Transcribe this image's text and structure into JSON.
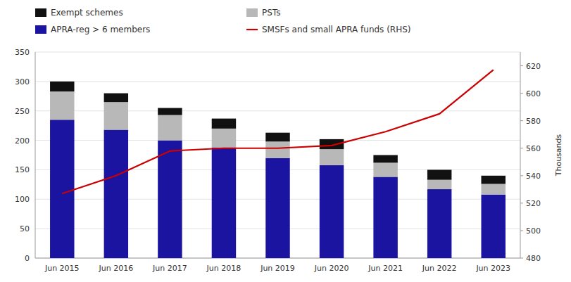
{
  "chart_data": {
    "type": "bar",
    "stacked": true,
    "categories": [
      "Jun 2015",
      "Jun 2016",
      "Jun 2017",
      "Jun 2018",
      "Jun 2019",
      "Jun 2020",
      "Jun 2021",
      "Jun 2022",
      "Jun 2023"
    ],
    "series": [
      {
        "name": "Exempt schemes",
        "color": "#111111",
        "values": [
          17,
          15,
          12,
          17,
          15,
          17,
          13,
          17,
          14
        ]
      },
      {
        "name": "PSTs",
        "color": "#b8b8b8",
        "values": [
          48,
          47,
          43,
          32,
          28,
          27,
          24,
          16,
          18
        ]
      },
      {
        "name": "APRA-reg > 6 members",
        "color": "#1a14a0",
        "values": [
          235,
          218,
          200,
          188,
          170,
          158,
          138,
          117,
          108
        ]
      },
      {
        "name": "SMSFs and small APRA funds (RHS)",
        "type": "line",
        "axis": "y2",
        "color": "#cc0000",
        "values": [
          527,
          540,
          558,
          560,
          560,
          562,
          572,
          585,
          617
        ]
      }
    ],
    "ylim": [
      0,
      350
    ],
    "yticks": [
      0,
      50,
      100,
      150,
      200,
      250,
      300,
      350
    ],
    "y2lim": [
      480,
      630
    ],
    "y2ticks": [
      480,
      500,
      520,
      540,
      560,
      580,
      600,
      620
    ],
    "y2label": "Thousands",
    "grid": true,
    "legend": "top"
  }
}
